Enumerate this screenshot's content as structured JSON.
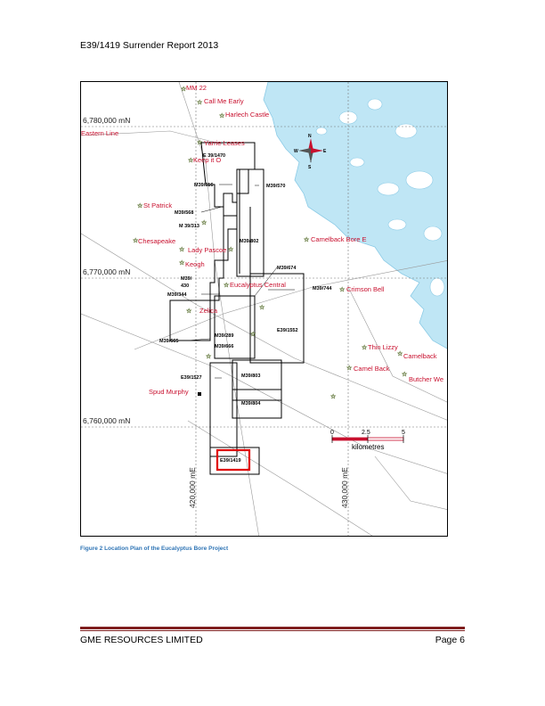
{
  "header": {
    "title": "E39/1419 Surrender Report 2013"
  },
  "map": {
    "northings": [
      "6,780,000 mN",
      "6,770,000 mN",
      "6,760,000 mN"
    ],
    "eastings": [
      "420,000 mE",
      "430,000 mE"
    ],
    "scale": {
      "ticks": [
        "0",
        "2.5",
        "5"
      ],
      "unit": "kilometres"
    },
    "compass": {
      "n": "N",
      "s": "S",
      "e": "E",
      "w": "W"
    },
    "localities": [
      "MM 22",
      "Call Me Early",
      "Harlech Castle",
      "Eastern Line",
      "Yarrie Leases",
      "Keep it O",
      "St Patrick",
      "Chesapeake",
      "Lady Pascoe",
      "Keogh",
      "Eucalyptus Central",
      "Zelica",
      "Spud Murphy",
      "Camelback Bore E",
      "Crimson Bell",
      "Thin Lizzy",
      "Camelback",
      "Camel Back",
      "Butcher We"
    ],
    "tenements": [
      "E 39/1470",
      "M39/616",
      "M39/570",
      "M39/568",
      "M 39/313",
      "M39/802",
      "M39/674",
      "M39/",
      "430",
      "M39/344",
      "M39/744",
      "M39/289",
      "M39/666",
      "M39/665",
      "E39/1552",
      "E39/1527",
      "M39/803",
      "M39/804",
      "E39/1419"
    ],
    "colors": {
      "lake": "#bfe6f5",
      "label": "#c8102e",
      "highlight": "#e00000",
      "star": "#9acd32"
    }
  },
  "caption": "Figure 2 Location Plan of the Eucalyptus Bore Project",
  "footer": {
    "company": "GME RESOURCES LIMITED",
    "page": "Page 6"
  }
}
